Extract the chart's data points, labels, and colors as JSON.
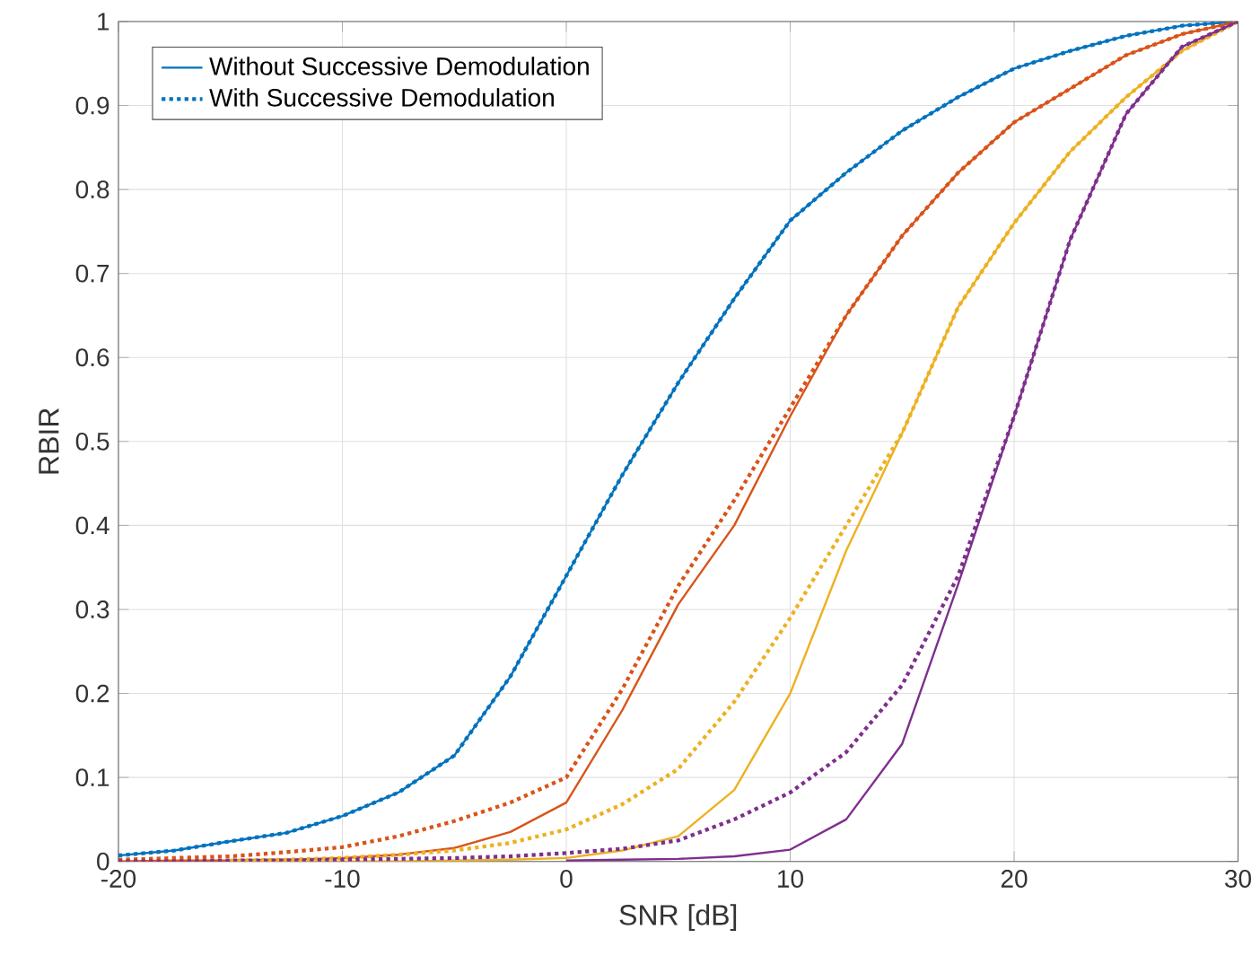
{
  "chart_data": {
    "type": "line",
    "xlabel": "SNR [dB]",
    "ylabel": "RBIR",
    "x": [
      -20,
      -17.5,
      -15,
      -12.5,
      -10,
      -7.5,
      -5,
      -2.5,
      0,
      2.5,
      5,
      7.5,
      10,
      12.5,
      15,
      17.5,
      20,
      22.5,
      25,
      27.5,
      30
    ],
    "series": [
      {
        "name": "Without Successive Demodulation",
        "color": "#0072bd",
        "line_style": "solid",
        "values": [
          0.007,
          0.013,
          0.024,
          0.034,
          0.054,
          0.082,
          0.126,
          0.22,
          0.34,
          0.46,
          0.57,
          0.67,
          0.763,
          0.82,
          0.87,
          0.91,
          0.944,
          0.965,
          0.983,
          0.995,
          1
        ]
      },
      {
        "name": "With Successive Demodulation",
        "color": "#0072bd",
        "line_style": "dotted",
        "values": [
          0.007,
          0.013,
          0.024,
          0.034,
          0.054,
          0.082,
          0.126,
          0.22,
          0.34,
          0.46,
          0.57,
          0.67,
          0.763,
          0.82,
          0.87,
          0.91,
          0.944,
          0.965,
          0.983,
          0.995,
          1
        ]
      },
      {
        "color": "#d95319",
        "line_style": "solid",
        "values": [
          0,
          0.001,
          0.001,
          0.002,
          0.004,
          0.008,
          0.016,
          0.035,
          0.07,
          0.18,
          0.306,
          0.4,
          0.53,
          0.65,
          0.745,
          0.82,
          0.88,
          0.92,
          0.96,
          0.985,
          1
        ]
      },
      {
        "color": "#d95319",
        "line_style": "dotted",
        "values": [
          0.002,
          0.004,
          0.006,
          0.011,
          0.017,
          0.03,
          0.048,
          0.07,
          0.1,
          0.205,
          0.328,
          0.43,
          0.54,
          0.65,
          0.745,
          0.82,
          0.88,
          0.92,
          0.96,
          0.985,
          1
        ]
      },
      {
        "color": "#edb120",
        "line_style": "solid",
        "values": [
          null,
          null,
          0,
          0,
          0,
          0,
          0.001,
          0.002,
          0.004,
          0.013,
          0.03,
          0.085,
          0.2,
          0.37,
          0.51,
          0.66,
          0.76,
          0.845,
          0.91,
          0.965,
          1
        ]
      },
      {
        "color": "#edb120",
        "line_style": "dotted",
        "values": [
          null,
          null,
          0.001,
          0.002,
          0.004,
          0.008,
          0.013,
          0.022,
          0.038,
          0.068,
          0.11,
          0.19,
          0.29,
          0.4,
          0.51,
          0.66,
          0.76,
          0.845,
          0.91,
          0.965,
          1
        ]
      },
      {
        "color": "#7e2f8e",
        "line_style": "solid",
        "values": [
          null,
          null,
          null,
          null,
          null,
          null,
          null,
          null,
          0.001,
          0.002,
          0.003,
          0.006,
          0.014,
          0.05,
          0.14,
          0.33,
          0.53,
          0.74,
          0.89,
          0.97,
          1
        ]
      },
      {
        "color": "#7e2f8e",
        "line_style": "dotted",
        "values": [
          0,
          0,
          0.001,
          0.001,
          0.002,
          0.003,
          0.004,
          0.006,
          0.01,
          0.015,
          0.025,
          0.05,
          0.082,
          0.13,
          0.21,
          0.34,
          0.53,
          0.74,
          0.89,
          0.97,
          1
        ]
      }
    ],
    "xlim": [
      -20,
      30
    ],
    "ylim": [
      0,
      1
    ],
    "xticks": [
      -20,
      -10,
      0,
      10,
      20,
      30
    ],
    "yticks": [
      0,
      0.1,
      0.2,
      0.3,
      0.4,
      0.5,
      0.6,
      0.7,
      0.8,
      0.9,
      1
    ],
    "grid": true,
    "legend": "top left",
    "marker": "none"
  }
}
